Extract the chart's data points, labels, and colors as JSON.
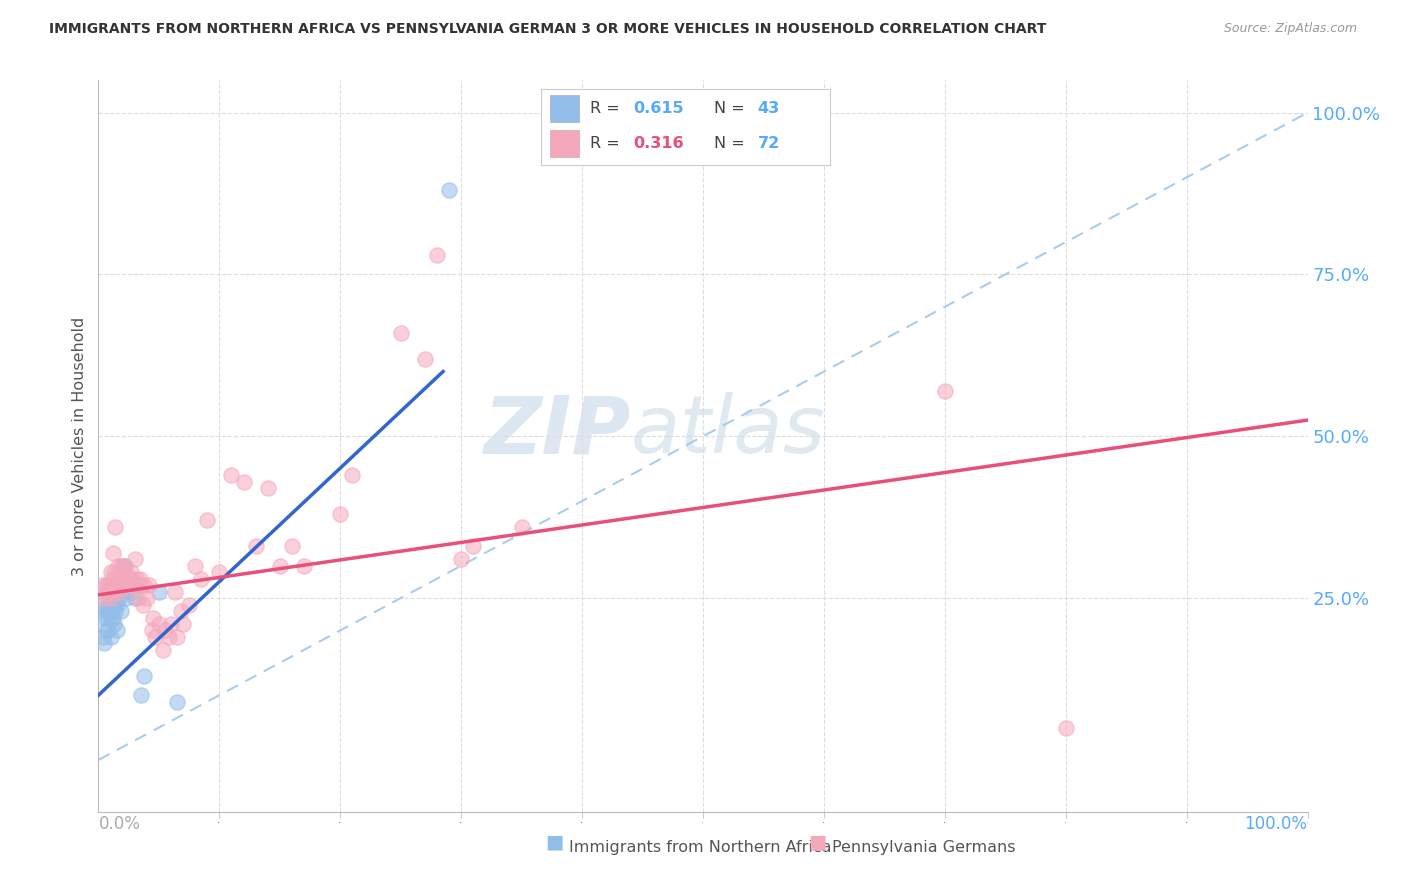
{
  "title": "IMMIGRANTS FROM NORTHERN AFRICA VS PENNSYLVANIA GERMAN 3 OR MORE VEHICLES IN HOUSEHOLD CORRELATION CHART",
  "source": "Source: ZipAtlas.com",
  "ylabel": "3 or more Vehicles in Household",
  "legend1_r": "0.615",
  "legend1_n": "43",
  "legend2_r": "0.316",
  "legend2_n": "72",
  "blue_scatter_color": "#92BDE8",
  "pink_scatter_color": "#F5A8BC",
  "blue_line_color": "#3366CC",
  "pink_line_color": "#E8507A",
  "diagonal_color": "#AACCEE",
  "right_axis_color": "#55AAFF",
  "watermark_color": "#C5D8EE",
  "blue_line_x0": 0.0,
  "blue_line_y0": 0.1,
  "blue_line_x1": 0.285,
  "blue_line_y1": 0.6,
  "pink_line_x0": 0.0,
  "pink_line_y0": 0.255,
  "pink_line_x1": 1.0,
  "pink_line_y1": 0.525,
  "xlim": [
    0.0,
    1.0
  ],
  "ylim": [
    -0.08,
    1.05
  ],
  "blue_scatter": [
    [
      0.003,
      0.24
    ],
    [
      0.004,
      0.19
    ],
    [
      0.005,
      0.22
    ],
    [
      0.005,
      0.18
    ],
    [
      0.006,
      0.23
    ],
    [
      0.006,
      0.2
    ],
    [
      0.007,
      0.26
    ],
    [
      0.007,
      0.22
    ],
    [
      0.008,
      0.24
    ],
    [
      0.008,
      0.2
    ],
    [
      0.009,
      0.27
    ],
    [
      0.009,
      0.23
    ],
    [
      0.01,
      0.25
    ],
    [
      0.01,
      0.22
    ],
    [
      0.01,
      0.19
    ],
    [
      0.011,
      0.24
    ],
    [
      0.012,
      0.26
    ],
    [
      0.012,
      0.22
    ],
    [
      0.013,
      0.24
    ],
    [
      0.013,
      0.21
    ],
    [
      0.014,
      0.23
    ],
    [
      0.015,
      0.27
    ],
    [
      0.015,
      0.24
    ],
    [
      0.015,
      0.2
    ],
    [
      0.016,
      0.26
    ],
    [
      0.017,
      0.25
    ],
    [
      0.018,
      0.27
    ],
    [
      0.019,
      0.23
    ],
    [
      0.02,
      0.3
    ],
    [
      0.02,
      0.27
    ],
    [
      0.022,
      0.3
    ],
    [
      0.022,
      0.26
    ],
    [
      0.023,
      0.25
    ],
    [
      0.025,
      0.28
    ],
    [
      0.026,
      0.27
    ],
    [
      0.028,
      0.26
    ],
    [
      0.03,
      0.27
    ],
    [
      0.03,
      0.25
    ],
    [
      0.035,
      0.1
    ],
    [
      0.038,
      0.13
    ],
    [
      0.05,
      0.26
    ],
    [
      0.065,
      0.09
    ],
    [
      0.29,
      0.88
    ]
  ],
  "pink_scatter": [
    [
      0.004,
      0.27
    ],
    [
      0.005,
      0.25
    ],
    [
      0.006,
      0.27
    ],
    [
      0.007,
      0.26
    ],
    [
      0.008,
      0.27
    ],
    [
      0.009,
      0.26
    ],
    [
      0.01,
      0.29
    ],
    [
      0.01,
      0.25
    ],
    [
      0.011,
      0.28
    ],
    [
      0.012,
      0.32
    ],
    [
      0.013,
      0.29
    ],
    [
      0.013,
      0.26
    ],
    [
      0.014,
      0.36
    ],
    [
      0.015,
      0.28
    ],
    [
      0.016,
      0.3
    ],
    [
      0.017,
      0.28
    ],
    [
      0.018,
      0.26
    ],
    [
      0.019,
      0.3
    ],
    [
      0.02,
      0.27
    ],
    [
      0.021,
      0.3
    ],
    [
      0.022,
      0.29
    ],
    [
      0.023,
      0.28
    ],
    [
      0.024,
      0.28
    ],
    [
      0.025,
      0.28
    ],
    [
      0.026,
      0.27
    ],
    [
      0.027,
      0.29
    ],
    [
      0.028,
      0.27
    ],
    [
      0.029,
      0.28
    ],
    [
      0.03,
      0.31
    ],
    [
      0.031,
      0.27
    ],
    [
      0.032,
      0.28
    ],
    [
      0.033,
      0.25
    ],
    [
      0.034,
      0.28
    ],
    [
      0.035,
      0.27
    ],
    [
      0.037,
      0.24
    ],
    [
      0.038,
      0.27
    ],
    [
      0.04,
      0.25
    ],
    [
      0.042,
      0.27
    ],
    [
      0.044,
      0.2
    ],
    [
      0.045,
      0.22
    ],
    [
      0.047,
      0.19
    ],
    [
      0.05,
      0.21
    ],
    [
      0.053,
      0.17
    ],
    [
      0.055,
      0.2
    ],
    [
      0.058,
      0.19
    ],
    [
      0.06,
      0.21
    ],
    [
      0.063,
      0.26
    ],
    [
      0.065,
      0.19
    ],
    [
      0.068,
      0.23
    ],
    [
      0.07,
      0.21
    ],
    [
      0.075,
      0.24
    ],
    [
      0.08,
      0.3
    ],
    [
      0.085,
      0.28
    ],
    [
      0.09,
      0.37
    ],
    [
      0.1,
      0.29
    ],
    [
      0.11,
      0.44
    ],
    [
      0.12,
      0.43
    ],
    [
      0.13,
      0.33
    ],
    [
      0.14,
      0.42
    ],
    [
      0.15,
      0.3
    ],
    [
      0.16,
      0.33
    ],
    [
      0.17,
      0.3
    ],
    [
      0.2,
      0.38
    ],
    [
      0.21,
      0.44
    ],
    [
      0.25,
      0.66
    ],
    [
      0.28,
      0.78
    ],
    [
      0.3,
      0.31
    ],
    [
      0.31,
      0.33
    ],
    [
      0.35,
      0.36
    ],
    [
      0.7,
      0.57
    ],
    [
      0.8,
      0.05
    ],
    [
      0.27,
      0.62
    ]
  ]
}
